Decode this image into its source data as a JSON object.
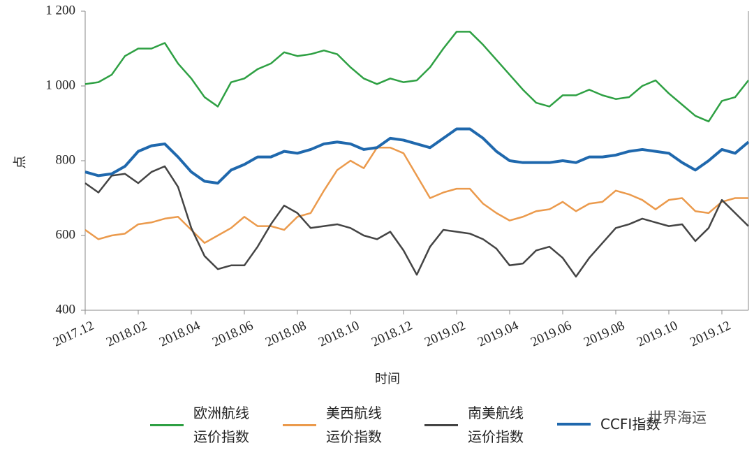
{
  "chart_data": {
    "type": "line",
    "y_label": "点",
    "x_label": "时间",
    "watermark": "世界海运",
    "categories": [
      "2017.12",
      null,
      null,
      null,
      "2018.02",
      null,
      null,
      null,
      "2018.04",
      null,
      null,
      null,
      "2018.06",
      null,
      null,
      null,
      "2018.08",
      null,
      null,
      null,
      "2018.10",
      null,
      null,
      null,
      "2018.12",
      null,
      null,
      null,
      "2019.02",
      null,
      null,
      null,
      "2019.04",
      null,
      null,
      null,
      "2019.06",
      null,
      null,
      null,
      "2019.08",
      null,
      null,
      null,
      "2019.10",
      null,
      null,
      null,
      "2019.12",
      null,
      null
    ],
    "series": [
      {
        "name": "欧洲航线运价指数",
        "color": "#2ea043",
        "values": [
          1005,
          1010,
          1030,
          1080,
          1100,
          1100,
          1115,
          1060,
          1020,
          970,
          945,
          1010,
          1020,
          1045,
          1060,
          1090,
          1080,
          1085,
          1095,
          1085,
          1050,
          1020,
          1005,
          1020,
          1010,
          1015,
          1050,
          1100,
          1145,
          1145,
          1110,
          1070,
          1030,
          990,
          955,
          945,
          975,
          975,
          990,
          975,
          965,
          970,
          1000,
          1015,
          980,
          950,
          920,
          905,
          960,
          970,
          1015
        ]
      },
      {
        "name": "美西航线运价指数",
        "color": "#eb9a4c",
        "values": [
          615,
          590,
          600,
          605,
          630,
          635,
          645,
          650,
          615,
          580,
          600,
          620,
          650,
          625,
          625,
          615,
          650,
          660,
          720,
          775,
          800,
          780,
          835,
          835,
          820,
          760,
          700,
          715,
          725,
          725,
          685,
          660,
          640,
          650,
          665,
          670,
          690,
          665,
          685,
          690,
          720,
          710,
          695,
          670,
          695,
          700,
          665,
          660,
          690,
          700,
          700
        ]
      },
      {
        "name": "南美航线运价指数",
        "color": "#444444",
        "values": [
          740,
          715,
          760,
          765,
          740,
          770,
          785,
          730,
          620,
          545,
          510,
          520,
          520,
          570,
          630,
          680,
          660,
          620,
          625,
          630,
          620,
          600,
          590,
          610,
          560,
          495,
          570,
          615,
          610,
          605,
          590,
          565,
          520,
          525,
          560,
          570,
          540,
          490,
          540,
          580,
          620,
          630,
          645,
          635,
          625,
          630,
          585,
          620,
          695,
          660,
          625
        ]
      },
      {
        "name": "CCFI指数",
        "color": "#1f68ad",
        "values": [
          770,
          760,
          765,
          785,
          825,
          840,
          845,
          810,
          770,
          745,
          740,
          775,
          790,
          810,
          810,
          825,
          820,
          830,
          845,
          850,
          845,
          830,
          835,
          860,
          855,
          845,
          835,
          860,
          885,
          885,
          860,
          825,
          800,
          795,
          795,
          795,
          800,
          795,
          810,
          810,
          815,
          825,
          830,
          825,
          820,
          795,
          775,
          800,
          830,
          820,
          850
        ]
      }
    ],
    "ylim": [
      400,
      1200
    ],
    "yticks": [
      400,
      600,
      800,
      {
        "value": 1000,
        "label": "1 000"
      },
      {
        "value": 1200,
        "label": "1 200"
      }
    ]
  }
}
